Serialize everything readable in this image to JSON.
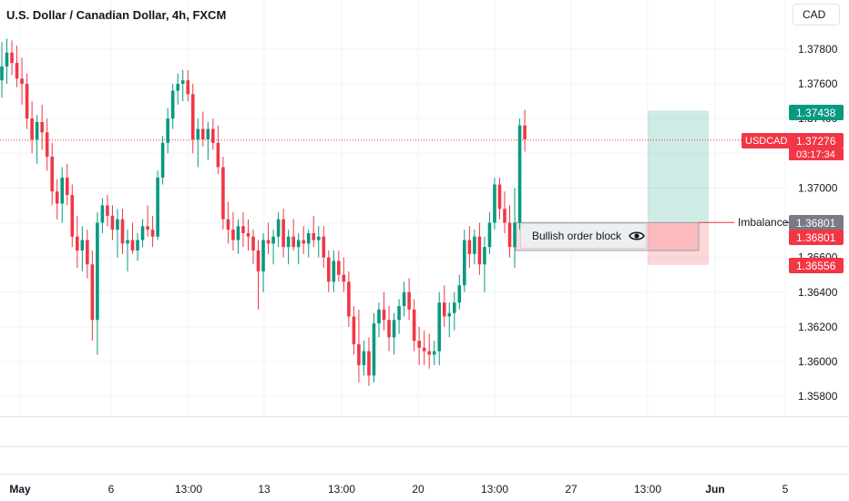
{
  "title": "U.S. Dollar / Canadian Dollar, 4h, FXCM",
  "currency_button": "CAD",
  "colors": {
    "up": "#089981",
    "down": "#f23645",
    "grid": "#f0f3fa",
    "text": "#131722"
  },
  "price_axis": {
    "ticks": [
      "1.37800",
      "1.37600",
      "1.37400",
      "1.37000",
      "1.36600",
      "1.36400",
      "1.36200",
      "1.36000",
      "1.35800"
    ]
  },
  "time_axis": {
    "labels": [
      "May",
      "6",
      "13:00",
      "13",
      "13:00",
      "20",
      "13:00",
      "27",
      "13:00",
      "Jun",
      "5"
    ]
  },
  "annotations": {
    "order_block_label": "Bullish order block",
    "imbalance_label": "Imbalance"
  },
  "price_tags": {
    "target": "1.37438",
    "last_price": "1.37276",
    "symbol": "USDCAD",
    "countdown": "03:17:34",
    "imbalance_gray": "1.36801",
    "order_block_red": "1.36801",
    "stop": "1.36556"
  },
  "chart_data": {
    "type": "candlestick",
    "title": "U.S. Dollar / Canadian Dollar, 4h, FXCM",
    "interval": "4h",
    "y_range": [
      1.357,
      1.379
    ],
    "grid": true,
    "candles": [
      [
        1.3762,
        1.3784,
        1.3752,
        1.377
      ],
      [
        1.377,
        1.3786,
        1.376,
        1.3778
      ],
      [
        1.3778,
        1.3785,
        1.3765,
        1.3772
      ],
      [
        1.3772,
        1.3782,
        1.3758,
        1.3763
      ],
      [
        1.3763,
        1.3775,
        1.3748,
        1.376
      ],
      [
        1.376,
        1.3766,
        1.3734,
        1.374
      ],
      [
        1.374,
        1.375,
        1.372,
        1.3728
      ],
      [
        1.3728,
        1.3742,
        1.3714,
        1.3738
      ],
      [
        1.3738,
        1.3748,
        1.3722,
        1.3732
      ],
      [
        1.3732,
        1.374,
        1.371,
        1.3718
      ],
      [
        1.3718,
        1.3726,
        1.369,
        1.3698
      ],
      [
        1.3698,
        1.3705,
        1.3682,
        1.3691
      ],
      [
        1.3691,
        1.3712,
        1.368,
        1.3706
      ],
      [
        1.3706,
        1.3714,
        1.369,
        1.3696
      ],
      [
        1.3696,
        1.3702,
        1.3666,
        1.3672
      ],
      [
        1.3672,
        1.3684,
        1.3654,
        1.3664
      ],
      [
        1.3664,
        1.3678,
        1.3652,
        1.367
      ],
      [
        1.367,
        1.3676,
        1.3648,
        1.3656
      ],
      [
        1.3656,
        1.3664,
        1.3612,
        1.3624
      ],
      [
        1.3624,
        1.3686,
        1.3604,
        1.368
      ],
      [
        1.368,
        1.3694,
        1.3674,
        1.369
      ],
      [
        1.369,
        1.3696,
        1.3678,
        1.3684
      ],
      [
        1.3684,
        1.369,
        1.367,
        1.3676
      ],
      [
        1.3676,
        1.3688,
        1.366,
        1.3682
      ],
      [
        1.3682,
        1.3688,
        1.3662,
        1.3668
      ],
      [
        1.3668,
        1.3676,
        1.3652,
        1.367
      ],
      [
        1.367,
        1.368,
        1.3662,
        1.3664
      ],
      [
        1.3664,
        1.3674,
        1.3658,
        1.367
      ],
      [
        1.367,
        1.3682,
        1.3666,
        1.3678
      ],
      [
        1.3678,
        1.369,
        1.3672,
        1.3676
      ],
      [
        1.3676,
        1.3684,
        1.3666,
        1.3672
      ],
      [
        1.3672,
        1.371,
        1.367,
        1.3706
      ],
      [
        1.3706,
        1.373,
        1.3702,
        1.3726
      ],
      [
        1.3726,
        1.3746,
        1.372,
        1.374
      ],
      [
        1.374,
        1.376,
        1.3734,
        1.3756
      ],
      [
        1.3756,
        1.3766,
        1.3748,
        1.376
      ],
      [
        1.376,
        1.3768,
        1.375,
        1.3762
      ],
      [
        1.3762,
        1.3768,
        1.375,
        1.3754
      ],
      [
        1.3754,
        1.376,
        1.372,
        1.3728
      ],
      [
        1.3728,
        1.374,
        1.3712,
        1.3734
      ],
      [
        1.3734,
        1.3744,
        1.3724,
        1.3728
      ],
      [
        1.3728,
        1.3738,
        1.3716,
        1.3734
      ],
      [
        1.3734,
        1.374,
        1.3722,
        1.3726
      ],
      [
        1.3726,
        1.3736,
        1.3708,
        1.3712
      ],
      [
        1.3712,
        1.3718,
        1.3676,
        1.3682
      ],
      [
        1.3682,
        1.3692,
        1.3668,
        1.3676
      ],
      [
        1.3676,
        1.3686,
        1.3664,
        1.367
      ],
      [
        1.367,
        1.3682,
        1.3662,
        1.3678
      ],
      [
        1.3678,
        1.3686,
        1.3666,
        1.3674
      ],
      [
        1.3674,
        1.3682,
        1.3664,
        1.3672
      ],
      [
        1.3672,
        1.3676,
        1.3656,
        1.3664
      ],
      [
        1.3664,
        1.367,
        1.363,
        1.3652
      ],
      [
        1.3652,
        1.3674,
        1.364,
        1.367
      ],
      [
        1.367,
        1.368,
        1.3662,
        1.3668
      ],
      [
        1.3668,
        1.3676,
        1.3656,
        1.3672
      ],
      [
        1.3672,
        1.3686,
        1.3666,
        1.3682
      ],
      [
        1.3682,
        1.3688,
        1.366,
        1.3666
      ],
      [
        1.3666,
        1.3676,
        1.3656,
        1.3672
      ],
      [
        1.3672,
        1.3682,
        1.3664,
        1.3666
      ],
      [
        1.3666,
        1.3674,
        1.3656,
        1.367
      ],
      [
        1.367,
        1.3678,
        1.3662,
        1.3668
      ],
      [
        1.3668,
        1.3676,
        1.366,
        1.3674
      ],
      [
        1.3674,
        1.3684,
        1.3666,
        1.367
      ],
      [
        1.367,
        1.3678,
        1.366,
        1.3672
      ],
      [
        1.3672,
        1.3678,
        1.3654,
        1.366
      ],
      [
        1.366,
        1.3664,
        1.364,
        1.3646
      ],
      [
        1.3646,
        1.3664,
        1.364,
        1.3658
      ],
      [
        1.3658,
        1.3664,
        1.3646,
        1.365
      ],
      [
        1.365,
        1.366,
        1.364,
        1.3646
      ],
      [
        1.3646,
        1.3652,
        1.362,
        1.3626
      ],
      [
        1.3626,
        1.3632,
        1.3604,
        1.361
      ],
      [
        1.361,
        1.363,
        1.3588,
        1.3598
      ],
      [
        1.3598,
        1.3612,
        1.3592,
        1.3606
      ],
      [
        1.3606,
        1.3614,
        1.3586,
        1.3592
      ],
      [
        1.3592,
        1.3628,
        1.3588,
        1.3622
      ],
      [
        1.3622,
        1.3634,
        1.3614,
        1.363
      ],
      [
        1.363,
        1.364,
        1.3618,
        1.3624
      ],
      [
        1.3624,
        1.3632,
        1.3606,
        1.3614
      ],
      [
        1.3614,
        1.3628,
        1.3604,
        1.3624
      ],
      [
        1.3624,
        1.3636,
        1.3616,
        1.3632
      ],
      [
        1.3632,
        1.3646,
        1.3626,
        1.364
      ],
      [
        1.364,
        1.3648,
        1.3624,
        1.363
      ],
      [
        1.363,
        1.3636,
        1.3606,
        1.3612
      ],
      [
        1.3612,
        1.362,
        1.3598,
        1.3608
      ],
      [
        1.3608,
        1.3618,
        1.3598,
        1.3606
      ],
      [
        1.3606,
        1.3616,
        1.3596,
        1.3604
      ],
      [
        1.3604,
        1.3612,
        1.3598,
        1.3606
      ],
      [
        1.3606,
        1.364,
        1.3598,
        1.3634
      ],
      [
        1.3634,
        1.3644,
        1.362,
        1.3626
      ],
      [
        1.3626,
        1.3634,
        1.3614,
        1.3628
      ],
      [
        1.3628,
        1.364,
        1.3618,
        1.3634
      ],
      [
        1.3634,
        1.365,
        1.363,
        1.3644
      ],
      [
        1.3644,
        1.3676,
        1.364,
        1.367
      ],
      [
        1.367,
        1.3678,
        1.3654,
        1.3662
      ],
      [
        1.3662,
        1.3676,
        1.3656,
        1.3672
      ],
      [
        1.3672,
        1.368,
        1.365,
        1.3656
      ],
      [
        1.3656,
        1.3672,
        1.364,
        1.3666
      ],
      [
        1.3666,
        1.3686,
        1.3662,
        1.368
      ],
      [
        1.368,
        1.3706,
        1.3676,
        1.3702
      ],
      [
        1.3702,
        1.3706,
        1.3682,
        1.3688
      ],
      [
        1.3688,
        1.3698,
        1.3674,
        1.368
      ],
      [
        1.368,
        1.369,
        1.366,
        1.3666
      ],
      [
        1.3666,
        1.37,
        1.3654,
        1.368
      ],
      [
        1.368,
        1.374,
        1.3676,
        1.3736
      ],
      [
        1.3736,
        1.3745,
        1.3721,
        1.3728
      ]
    ]
  }
}
